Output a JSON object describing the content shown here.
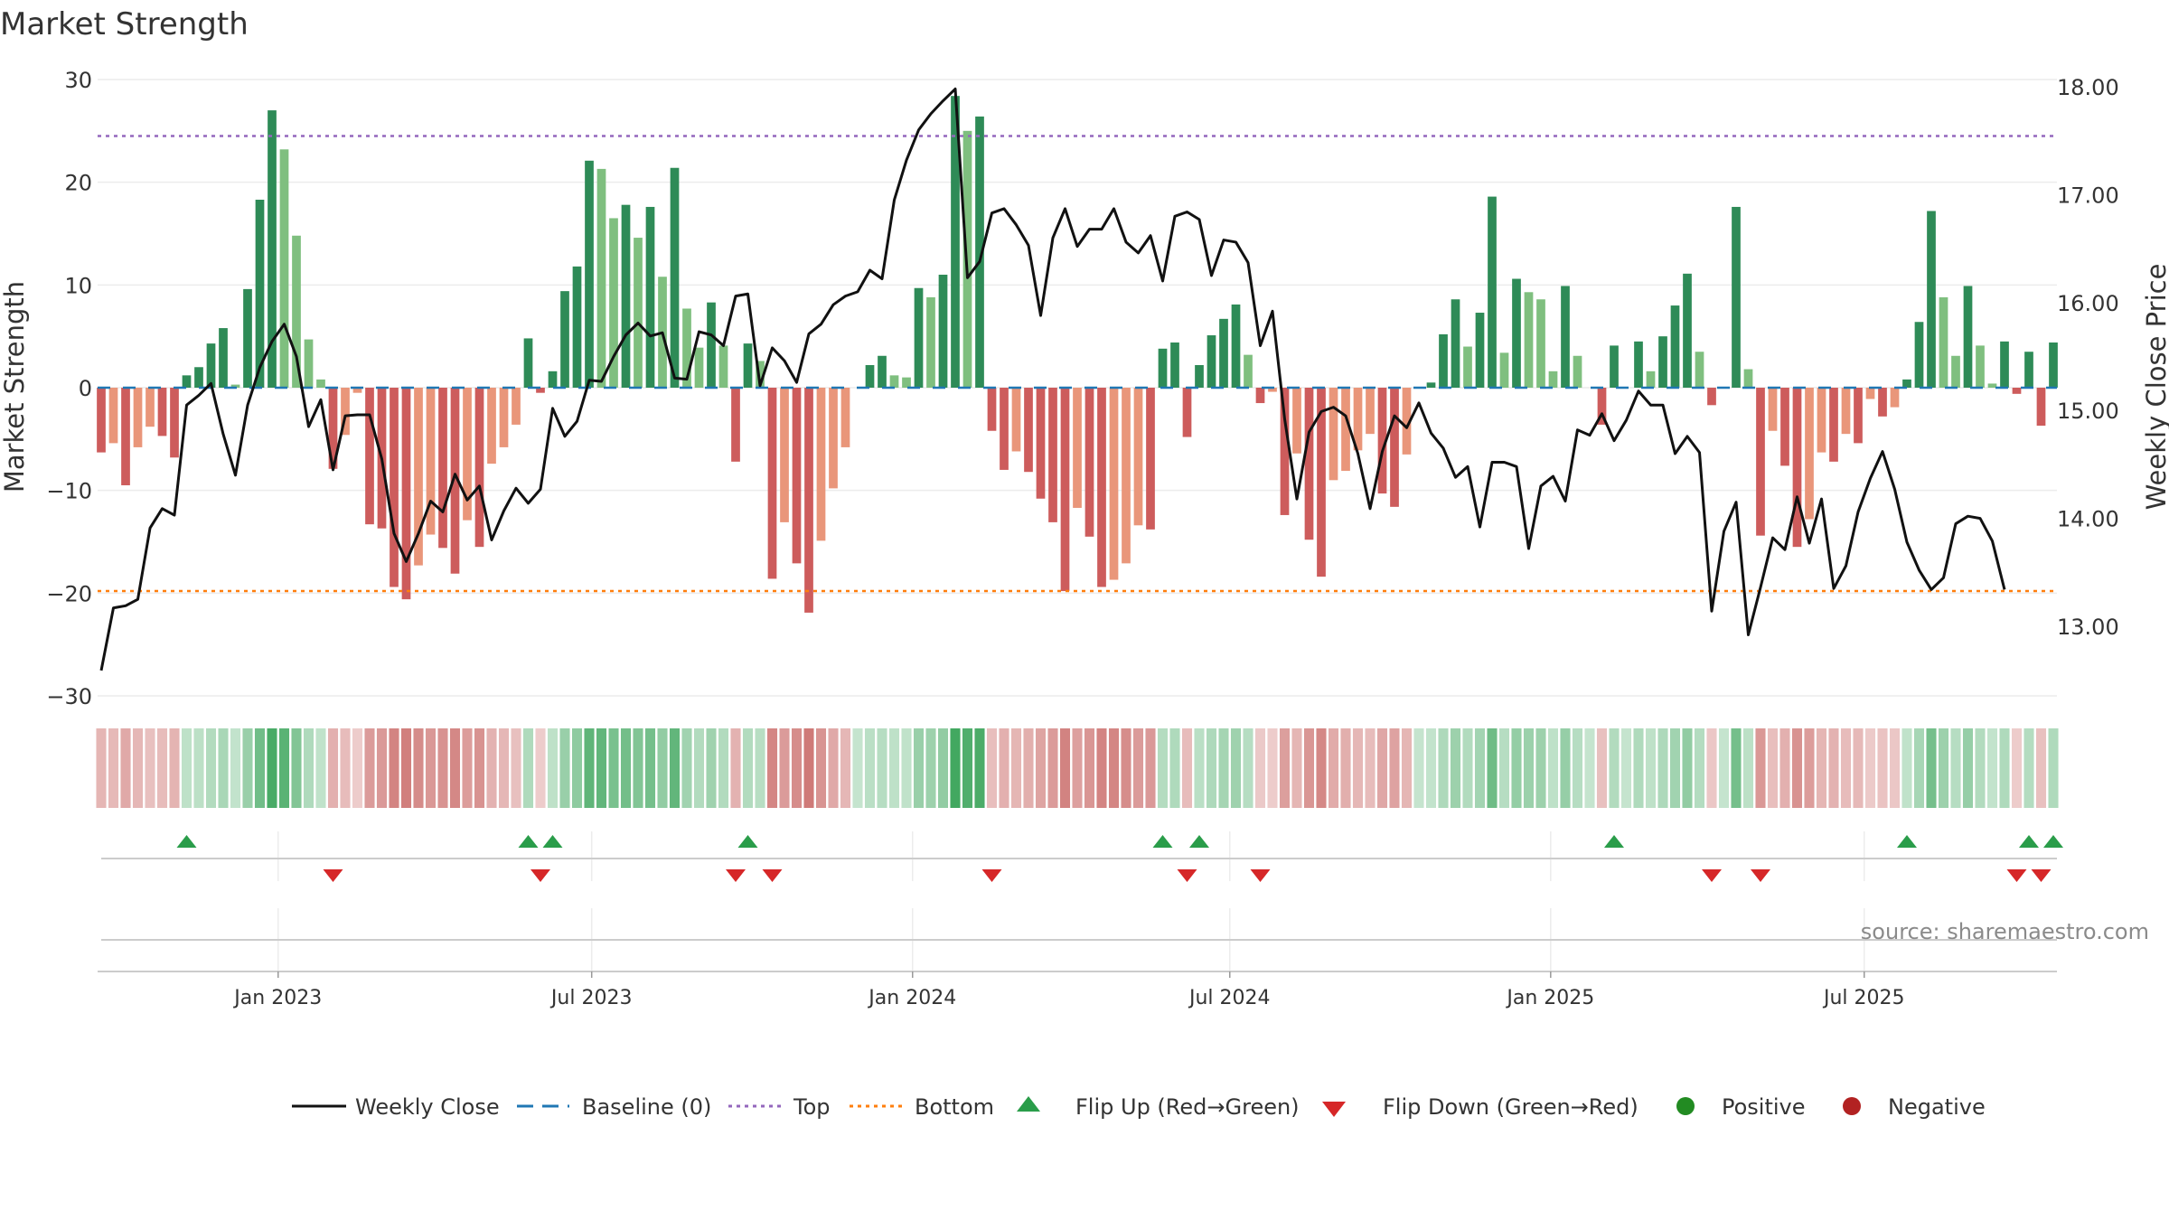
{
  "chart_data": {
    "type": "bar",
    "title": "Market Strength",
    "ylabel_left": "Market Strength",
    "ylabel_right": "Weekly Close Price",
    "ylim_left": [
      -30,
      30
    ],
    "ylim_right": [
      12.4,
      18.1
    ],
    "left_ticks": [
      30,
      20,
      10,
      0,
      -10,
      -20,
      -30
    ],
    "left_tick_labels": [
      "30",
      "20",
      "10",
      "0",
      "−10",
      "−20",
      "−30"
    ],
    "right_ticks": [
      18,
      17,
      16,
      15,
      14,
      13
    ],
    "right_tick_labels": [
      "18.00",
      "17.00",
      "16.00",
      "15.00",
      "14.00",
      "13.00"
    ],
    "x_tick_labels": [
      "Jan 2023",
      "Jul 2023",
      "Jan 2024",
      "Jul 2024",
      "Jan 2025",
      "Jul 2025"
    ],
    "x_tick_index": [
      14.5,
      40.2,
      66.5,
      92.5,
      118.8,
      144.5
    ],
    "top_line": 24.5,
    "bottom_line": -19.8,
    "baseline": 0,
    "source": "source: sharemaestro.com",
    "colors": {
      "pos_strong": "#2e8b57",
      "pos_light": "#7fbf7f",
      "neg_strong": "#cd5c5c",
      "neg_light": "#e9967a",
      "price": "#111111",
      "baseline": "#1f77b4",
      "top": "#9467bd",
      "bottom": "#ff7f0e",
      "flip_up": "#2a9d4a",
      "flip_down": "#d62728",
      "positive_dot": "#228b22",
      "negative_dot": "#b22222"
    },
    "series": [
      {
        "name": "Market Strength",
        "values": [
          -6.3,
          -5.4,
          -9.5,
          -5.8,
          -3.8,
          -4.7,
          -6.8,
          1.2,
          2,
          4.3,
          5.8,
          0.3,
          9.6,
          18.3,
          27,
          23.2,
          14.8,
          4.7,
          0.8,
          -7.9,
          -4.6,
          -0.5,
          -13.3,
          -13.7,
          -19.4,
          -20.6,
          -17.3,
          -14.3,
          -15.6,
          -18.1,
          -12.9,
          -15.5,
          -7.4,
          -5.8,
          -3.6,
          4.8,
          -0.5,
          1.6,
          9.4,
          11.8,
          22.1,
          21.3,
          16.5,
          17.8,
          14.6,
          17.6,
          10.8,
          21.4,
          7.7,
          3.9,
          8.3,
          4.1,
          -7.2,
          4.3,
          2.6,
          -18.6,
          -13.1,
          -17.1,
          -21.9,
          -14.9,
          -9.8,
          -5.8,
          0,
          2.2,
          3.1,
          1.2,
          1,
          9.7,
          8.8,
          11,
          28.4,
          25,
          26.4,
          -4.2,
          -8,
          -6.2,
          -8.2,
          -10.8,
          -13.1,
          -19.8,
          -11.7,
          -14.5,
          -19.4,
          -18.7,
          -17.1,
          -13.4,
          -13.8,
          3.8,
          4.4,
          -4.8,
          2.2,
          5.1,
          6.7,
          8.1,
          3.2,
          -1.5,
          -0.4,
          -12.4,
          -6.4,
          -14.8,
          -18.4,
          -9,
          -8.1,
          -6.1,
          -4.5,
          -10.3,
          -11.6,
          -6.5,
          0,
          0.5,
          5.2,
          8.6,
          4,
          7.3,
          18.6,
          3.4,
          10.6,
          9.3,
          8.6,
          1.6,
          9.9,
          3.1,
          0,
          -3.6,
          4.1,
          0,
          4.5,
          1.6,
          5,
          8,
          11.1,
          3.5,
          -1.7,
          0,
          17.6,
          1.8,
          -14.4,
          -4.2,
          -7.6,
          -15.5,
          -12.8,
          -6.3,
          -7.2,
          -4.5,
          -5.4,
          -1.1,
          -2.8,
          -1.9,
          0.8,
          6.4,
          17.2,
          8.8,
          3.1,
          9.9,
          4.1,
          0.4,
          4.5,
          -0.6,
          3.5,
          -3.7,
          4.4
        ]
      },
      {
        "name": "Weekly Close",
        "values": [
          12.59,
          13.17,
          13.19,
          13.25,
          13.91,
          14.09,
          14.03,
          15.05,
          15.14,
          15.25,
          14.78,
          14.4,
          15.05,
          15.4,
          15.64,
          15.8,
          15.5,
          14.85,
          15.1,
          14.45,
          14.95,
          14.96,
          14.96,
          14.55,
          13.86,
          13.6,
          13.86,
          14.16,
          14.06,
          14.41,
          14.17,
          14.3,
          13.8,
          14.07,
          14.28,
          14.14,
          14.27,
          15.02,
          14.76,
          14.9,
          15.28,
          15.27,
          15.5,
          15.7,
          15.81,
          15.69,
          15.72,
          15.3,
          15.29,
          15.73,
          15.7,
          15.6,
          16.06,
          16.08,
          15.23,
          15.58,
          15.46,
          15.26,
          15.71,
          15.8,
          15.98,
          16.06,
          16.1,
          16.3,
          16.22,
          16.95,
          17.32,
          17.6,
          17.75,
          17.87,
          17.98,
          16.23,
          16.38,
          16.83,
          16.87,
          16.72,
          16.53,
          15.88,
          16.6,
          16.87,
          16.52,
          16.68,
          16.68,
          16.87,
          16.56,
          16.46,
          16.62,
          16.2,
          16.8,
          16.84,
          16.77,
          16.25,
          16.58,
          16.56,
          16.37,
          15.6,
          15.92,
          14.92,
          14.18,
          14.8,
          14.99,
          15.03,
          14.95,
          14.6,
          14.09,
          14.62,
          14.95,
          14.84,
          15.07,
          14.79,
          14.65,
          14.38,
          14.48,
          13.92,
          14.52,
          14.52,
          14.48,
          13.72,
          14.3,
          14.39,
          14.16,
          14.82,
          14.77,
          14.97,
          14.72,
          14.91,
          15.18,
          15.05,
          15.05,
          14.6,
          14.76,
          14.61,
          13.14,
          13.88,
          14.15,
          12.92,
          13.36,
          13.82,
          13.71,
          14.2,
          13.77,
          14.18,
          13.35,
          13.56,
          14.06,
          14.37,
          14.62,
          14.27,
          13.78,
          13.52,
          13.34,
          13.45,
          13.95,
          14.02,
          14.0,
          13.79,
          13.34
        ]
      }
    ]
  },
  "legend": {
    "weekly_close": "Weekly Close",
    "baseline": "Baseline (0)",
    "top": "Top",
    "bottom": "Bottom",
    "flip_up": "Flip Up (Red→Green)",
    "flip_down": "Flip Down (Green→Red)",
    "positive": "Positive",
    "negative": "Negative"
  }
}
